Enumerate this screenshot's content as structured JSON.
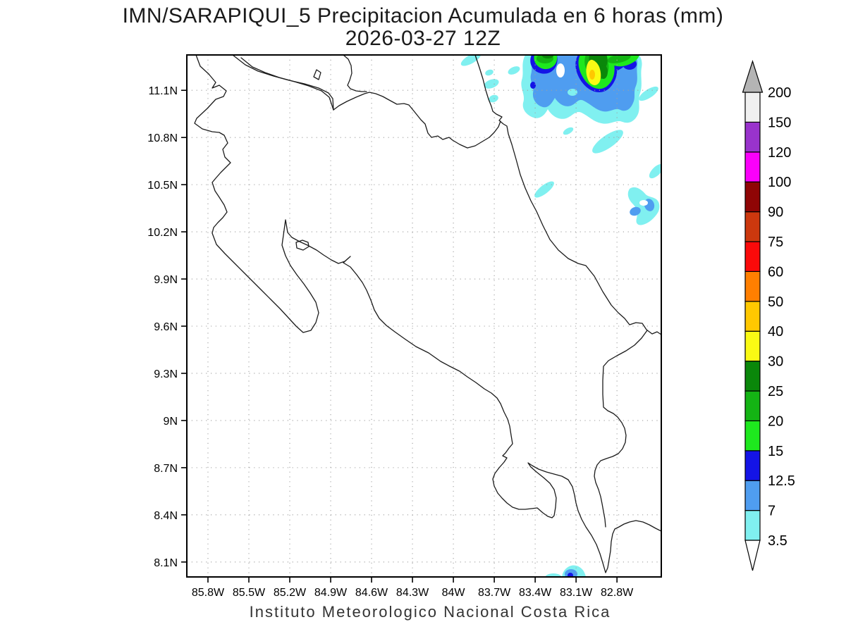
{
  "title": {
    "line1": "IMN/SARAPIQUI_5 Precipitacion Acumulada en 6 horas (mm)",
    "line2": "2026-03-27 12Z"
  },
  "caption": "Instituto Meteorologico Nacional Costa Rica",
  "chart_data": {
    "type": "map-contour",
    "title": "IMN/SARAPIQUI_5 Precipitacion Acumulada en 6 horas (mm)",
    "subtitle": "2026-03-27 12Z",
    "source_caption": "Instituto Meteorologico Nacional Costa Rica",
    "units": "mm",
    "accumulation_hours": 6,
    "valid_time": "2026-03-27 12Z",
    "region": "Costa Rica",
    "grid": true,
    "lon_range": [
      -85.955,
      -82.475
    ],
    "lat_range": [
      8.005,
      11.325
    ],
    "lon_axis": {
      "values": [
        -85.8,
        -85.5,
        -85.2,
        -84.9,
        -84.6,
        -84.3,
        -84.0,
        -83.7,
        -83.4,
        -83.1,
        -82.8
      ],
      "labels": [
        "85.8W",
        "85.5W",
        "85.2W",
        "84.9W",
        "84.6W",
        "84.3W",
        "84W",
        "83.7W",
        "83.4W",
        "83.1W",
        "82.8W"
      ]
    },
    "lat_axis": {
      "values": [
        11.1,
        10.8,
        10.5,
        10.2,
        9.9,
        9.6,
        9.3,
        9.0,
        8.7,
        8.4,
        8.1
      ],
      "labels": [
        "11.1N",
        "10.8N",
        "10.5N",
        "10.2N",
        "9.9N",
        "9.6N",
        "9.3N",
        "9N",
        "8.7N",
        "8.4N",
        "8.1N"
      ]
    },
    "colorbar": {
      "levels": [
        "3.5",
        "7",
        "12.5",
        "15",
        "20",
        "25",
        "30",
        "40",
        "50",
        "60",
        "75",
        "90",
        "100",
        "120",
        "150",
        "200"
      ],
      "colors": [
        "#80f0f0",
        "#4f9df0",
        "#1414e6",
        "#1ee81e",
        "#14b414",
        "#0a870a",
        "#fafa14",
        "#ffc800",
        "#ff7f00",
        "#fa0a0a",
        "#cc380e",
        "#8f0505",
        "#fa00fa",
        "#9933cc",
        "#f0f0f0"
      ],
      "above_color": "#b4b4b4",
      "below_color": "#ffffff",
      "hole_color": "#ffffff"
    },
    "precipitation_cells": [
      {
        "location": "offshore Caribbean NE - main cell",
        "lat": 11.22,
        "lon": -82.98,
        "peak_band_mm": "40-50"
      },
      {
        "location": "offshore Caribbean NE - west cell",
        "lat": 11.29,
        "lon": -83.32,
        "peak_band_mm": "25-30"
      },
      {
        "location": "offshore Caribbean NE - east streak",
        "lat": 11.29,
        "lon": -82.77,
        "peak_band_mm": "20-25"
      },
      {
        "location": "offshore Caribbean east",
        "lat": 10.36,
        "lon": -82.6,
        "peak_band_mm": "7-12.5"
      },
      {
        "location": "Pacific south near Punta Burica",
        "lat": 8.02,
        "lon": -83.19,
        "peak_band_mm": "12.5-15"
      }
    ]
  }
}
